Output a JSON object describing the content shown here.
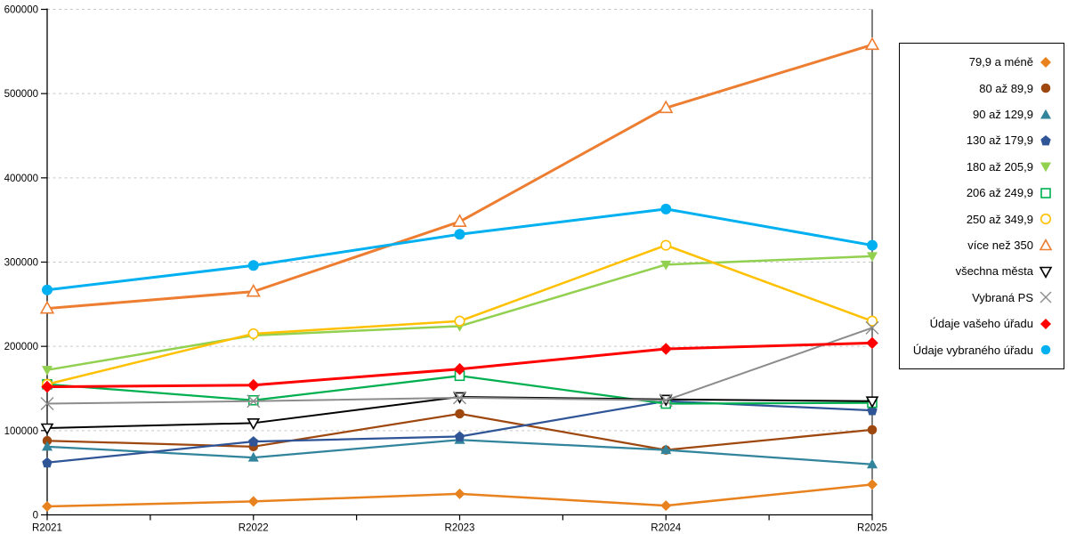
{
  "chart_data": {
    "type": "line",
    "title": "",
    "xlabel": "",
    "ylabel": "",
    "grid": "horizontal-dashed",
    "legend_position": "right",
    "categories": [
      "R2021",
      "R2022",
      "R2023",
      "R2024",
      "R2025"
    ],
    "y_axis": {
      "min": 0,
      "max": 600000,
      "step": 100000,
      "tick_labels": [
        "0",
        "100000",
        "200000",
        "300000",
        "400000",
        "500000",
        "600000"
      ]
    },
    "series": [
      {
        "name": "79,9 a méně",
        "marker": "diamond",
        "fill": "filled",
        "color": "#E8821E",
        "line_width": 2.5,
        "values": [
          10000,
          16000,
          25000,
          11000,
          36000
        ]
      },
      {
        "name": "80 až 89,9",
        "marker": "circle",
        "fill": "filled",
        "color": "#9E480F",
        "line_width": 2.25,
        "values": [
          88000,
          81000,
          120000,
          77000,
          101000
        ]
      },
      {
        "name": "90 až 129,9",
        "marker": "triangle-up",
        "fill": "filled",
        "color": "#31849B",
        "line_width": 2.25,
        "values": [
          81000,
          68000,
          89000,
          77000,
          60000
        ]
      },
      {
        "name": "130 až 179,9",
        "marker": "pentagon",
        "fill": "filled",
        "color": "#2F5597",
        "line_width": 2.25,
        "values": [
          62000,
          87000,
          93000,
          135000,
          124000
        ]
      },
      {
        "name": "180 až 205,9",
        "marker": "triangle-down",
        "fill": "filled",
        "color": "#92D050",
        "line_width": 2.5,
        "values": [
          172000,
          213000,
          224000,
          297000,
          307000
        ]
      },
      {
        "name": "206 až 249,9",
        "marker": "square",
        "fill": "open",
        "color": "#00B050",
        "line_width": 2.25,
        "values": [
          155000,
          136000,
          165000,
          132000,
          133000
        ]
      },
      {
        "name": "250 až 349,9",
        "marker": "circle",
        "fill": "open",
        "color": "#FFC000",
        "line_width": 2.5,
        "values": [
          155000,
          215000,
          230000,
          320000,
          230000
        ]
      },
      {
        "name": "více než 350",
        "marker": "triangle-up",
        "fill": "open",
        "color": "#ED7D31",
        "line_width": 3,
        "values": [
          245000,
          265000,
          348000,
          483000,
          558000
        ]
      },
      {
        "name": "všechna města",
        "marker": "triangle-down",
        "fill": "open",
        "color": "#000000",
        "line_width": 2,
        "values": [
          103000,
          109000,
          140000,
          137000,
          135000
        ]
      },
      {
        "name": "Vybraná PS",
        "marker": "x",
        "fill": "open",
        "color": "#8C8C8C",
        "line_width": 2,
        "values": [
          132000,
          135000,
          139000,
          136000,
          222000
        ]
      },
      {
        "name": "Údaje vašeho úřadu",
        "marker": "diamond",
        "fill": "filled",
        "color": "#FF0000",
        "line_width": 3,
        "values": [
          152000,
          154000,
          173000,
          197000,
          204000
        ]
      },
      {
        "name": "Údaje vybraného úřadu",
        "marker": "circle",
        "fill": "filled",
        "color": "#00B0F0",
        "line_width": 3,
        "values": [
          267000,
          296000,
          333000,
          363000,
          320000
        ]
      }
    ]
  }
}
